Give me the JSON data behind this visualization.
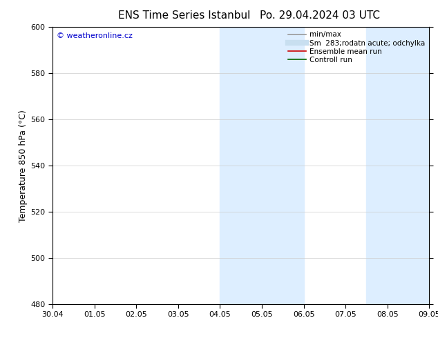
{
  "title_left": "ENS Time Series Istanbul",
  "title_right": "Po. 29.04.2024 03 UTC",
  "ylabel": "Temperature 850 hPa (°C)",
  "ylim": [
    480,
    600
  ],
  "yticks": [
    480,
    500,
    520,
    540,
    560,
    580,
    600
  ],
  "xlabel_ticks": [
    "30.04",
    "01.05",
    "02.05",
    "03.05",
    "04.05",
    "05.05",
    "06.05",
    "07.05",
    "08.05",
    "09.05"
  ],
  "x_values": [
    0,
    1,
    2,
    3,
    4,
    5,
    6,
    7,
    8,
    9
  ],
  "shaded_regions": [
    {
      "xmin": 4.0,
      "xmax": 6.0,
      "color": "#ddeeff"
    },
    {
      "xmin": 7.5,
      "xmax": 9.0,
      "color": "#ddeeff"
    }
  ],
  "watermark_text": "© weatheronline.cz",
  "watermark_color": "#0000cc",
  "legend_entries": [
    {
      "label": "min/max",
      "color": "#999999",
      "lw": 1.2
    },
    {
      "label": "Sm  283;rodatn acute; odchylka",
      "color": "#c8dff0",
      "lw": 6
    },
    {
      "label": "Ensemble mean run",
      "color": "#cc0000",
      "lw": 1.2
    },
    {
      "label": "Controll run",
      "color": "#006600",
      "lw": 1.2
    }
  ],
  "bg_color": "#ffffff",
  "grid_color": "#cccccc",
  "border_color": "#000000",
  "tick_color": "#000000",
  "font_color": "#000000",
  "title_fontsize": 11,
  "ylabel_fontsize": 9,
  "tick_fontsize": 8,
  "legend_fontsize": 7.5
}
